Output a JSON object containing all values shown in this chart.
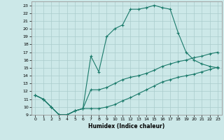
{
  "title": "",
  "xlabel": "Humidex (Indice chaleur)",
  "bg_color": "#cce8e8",
  "grid_color": "#aacccc",
  "line_color": "#1a7a6a",
  "xlim": [
    -0.5,
    23.5
  ],
  "ylim": [
    9,
    23.5
  ],
  "xticks": [
    0,
    1,
    2,
    3,
    4,
    5,
    6,
    7,
    8,
    9,
    10,
    11,
    12,
    13,
    14,
    15,
    16,
    17,
    18,
    19,
    20,
    21,
    22,
    23
  ],
  "yticks": [
    9,
    10,
    11,
    12,
    13,
    14,
    15,
    16,
    17,
    18,
    19,
    20,
    21,
    22,
    23
  ],
  "line1_x": [
    0,
    1,
    2,
    3,
    4,
    5,
    6,
    7,
    8,
    9,
    10,
    11,
    12,
    13,
    14,
    15,
    16,
    17,
    18,
    19,
    20,
    21,
    22,
    23
  ],
  "line1_y": [
    11.5,
    11.0,
    10.0,
    9.0,
    9.0,
    9.5,
    9.8,
    16.5,
    14.5,
    19.0,
    20.0,
    20.5,
    22.5,
    22.5,
    22.7,
    23.0,
    22.7,
    22.5,
    19.5,
    17.0,
    16.0,
    15.5,
    15.2,
    15.0
  ],
  "line2_x": [
    0,
    1,
    2,
    3,
    4,
    5,
    6,
    7,
    8,
    9,
    10,
    11,
    12,
    13,
    14,
    15,
    16,
    17,
    18,
    19,
    20,
    21,
    22,
    23
  ],
  "line2_y": [
    11.5,
    11.0,
    10.0,
    9.0,
    9.0,
    9.5,
    9.8,
    12.2,
    12.2,
    12.5,
    13.0,
    13.5,
    13.8,
    14.0,
    14.3,
    14.7,
    15.2,
    15.5,
    15.8,
    16.0,
    16.3,
    16.5,
    16.8,
    17.0
  ],
  "line3_x": [
    0,
    1,
    2,
    3,
    4,
    5,
    6,
    7,
    8,
    9,
    10,
    11,
    12,
    13,
    14,
    15,
    16,
    17,
    18,
    19,
    20,
    21,
    22,
    23
  ],
  "line3_y": [
    11.5,
    11.0,
    10.0,
    9.0,
    9.0,
    9.5,
    9.8,
    9.8,
    9.8,
    10.0,
    10.3,
    10.8,
    11.2,
    11.7,
    12.2,
    12.7,
    13.2,
    13.5,
    13.8,
    14.0,
    14.2,
    14.5,
    14.8,
    15.1
  ]
}
